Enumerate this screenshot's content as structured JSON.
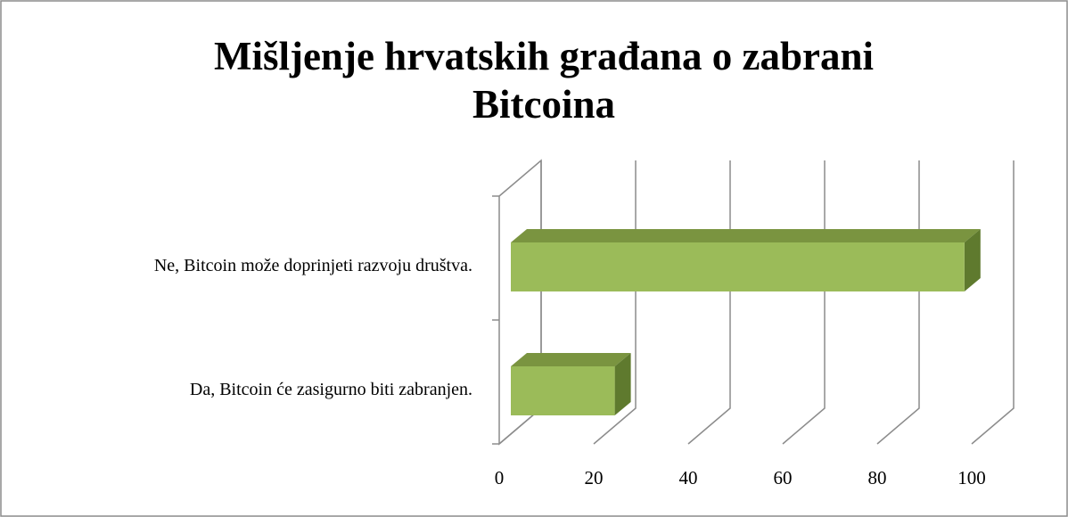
{
  "chart_data": {
    "type": "bar3d",
    "orientation": "horizontal",
    "title": "Mišljenje hrvatskih građana o zabrani Bitcoina",
    "categories": [
      "Da, Bitcoin će zasigurno biti zabranjen.",
      "Ne, Bitcoin može doprinjeti razvoju društva."
    ],
    "values": [
      22,
      96
    ],
    "color": "#9bbb59",
    "xlim": [
      0,
      100
    ],
    "xticks": [
      0,
      20,
      40,
      60,
      80,
      100
    ],
    "grid": true
  }
}
